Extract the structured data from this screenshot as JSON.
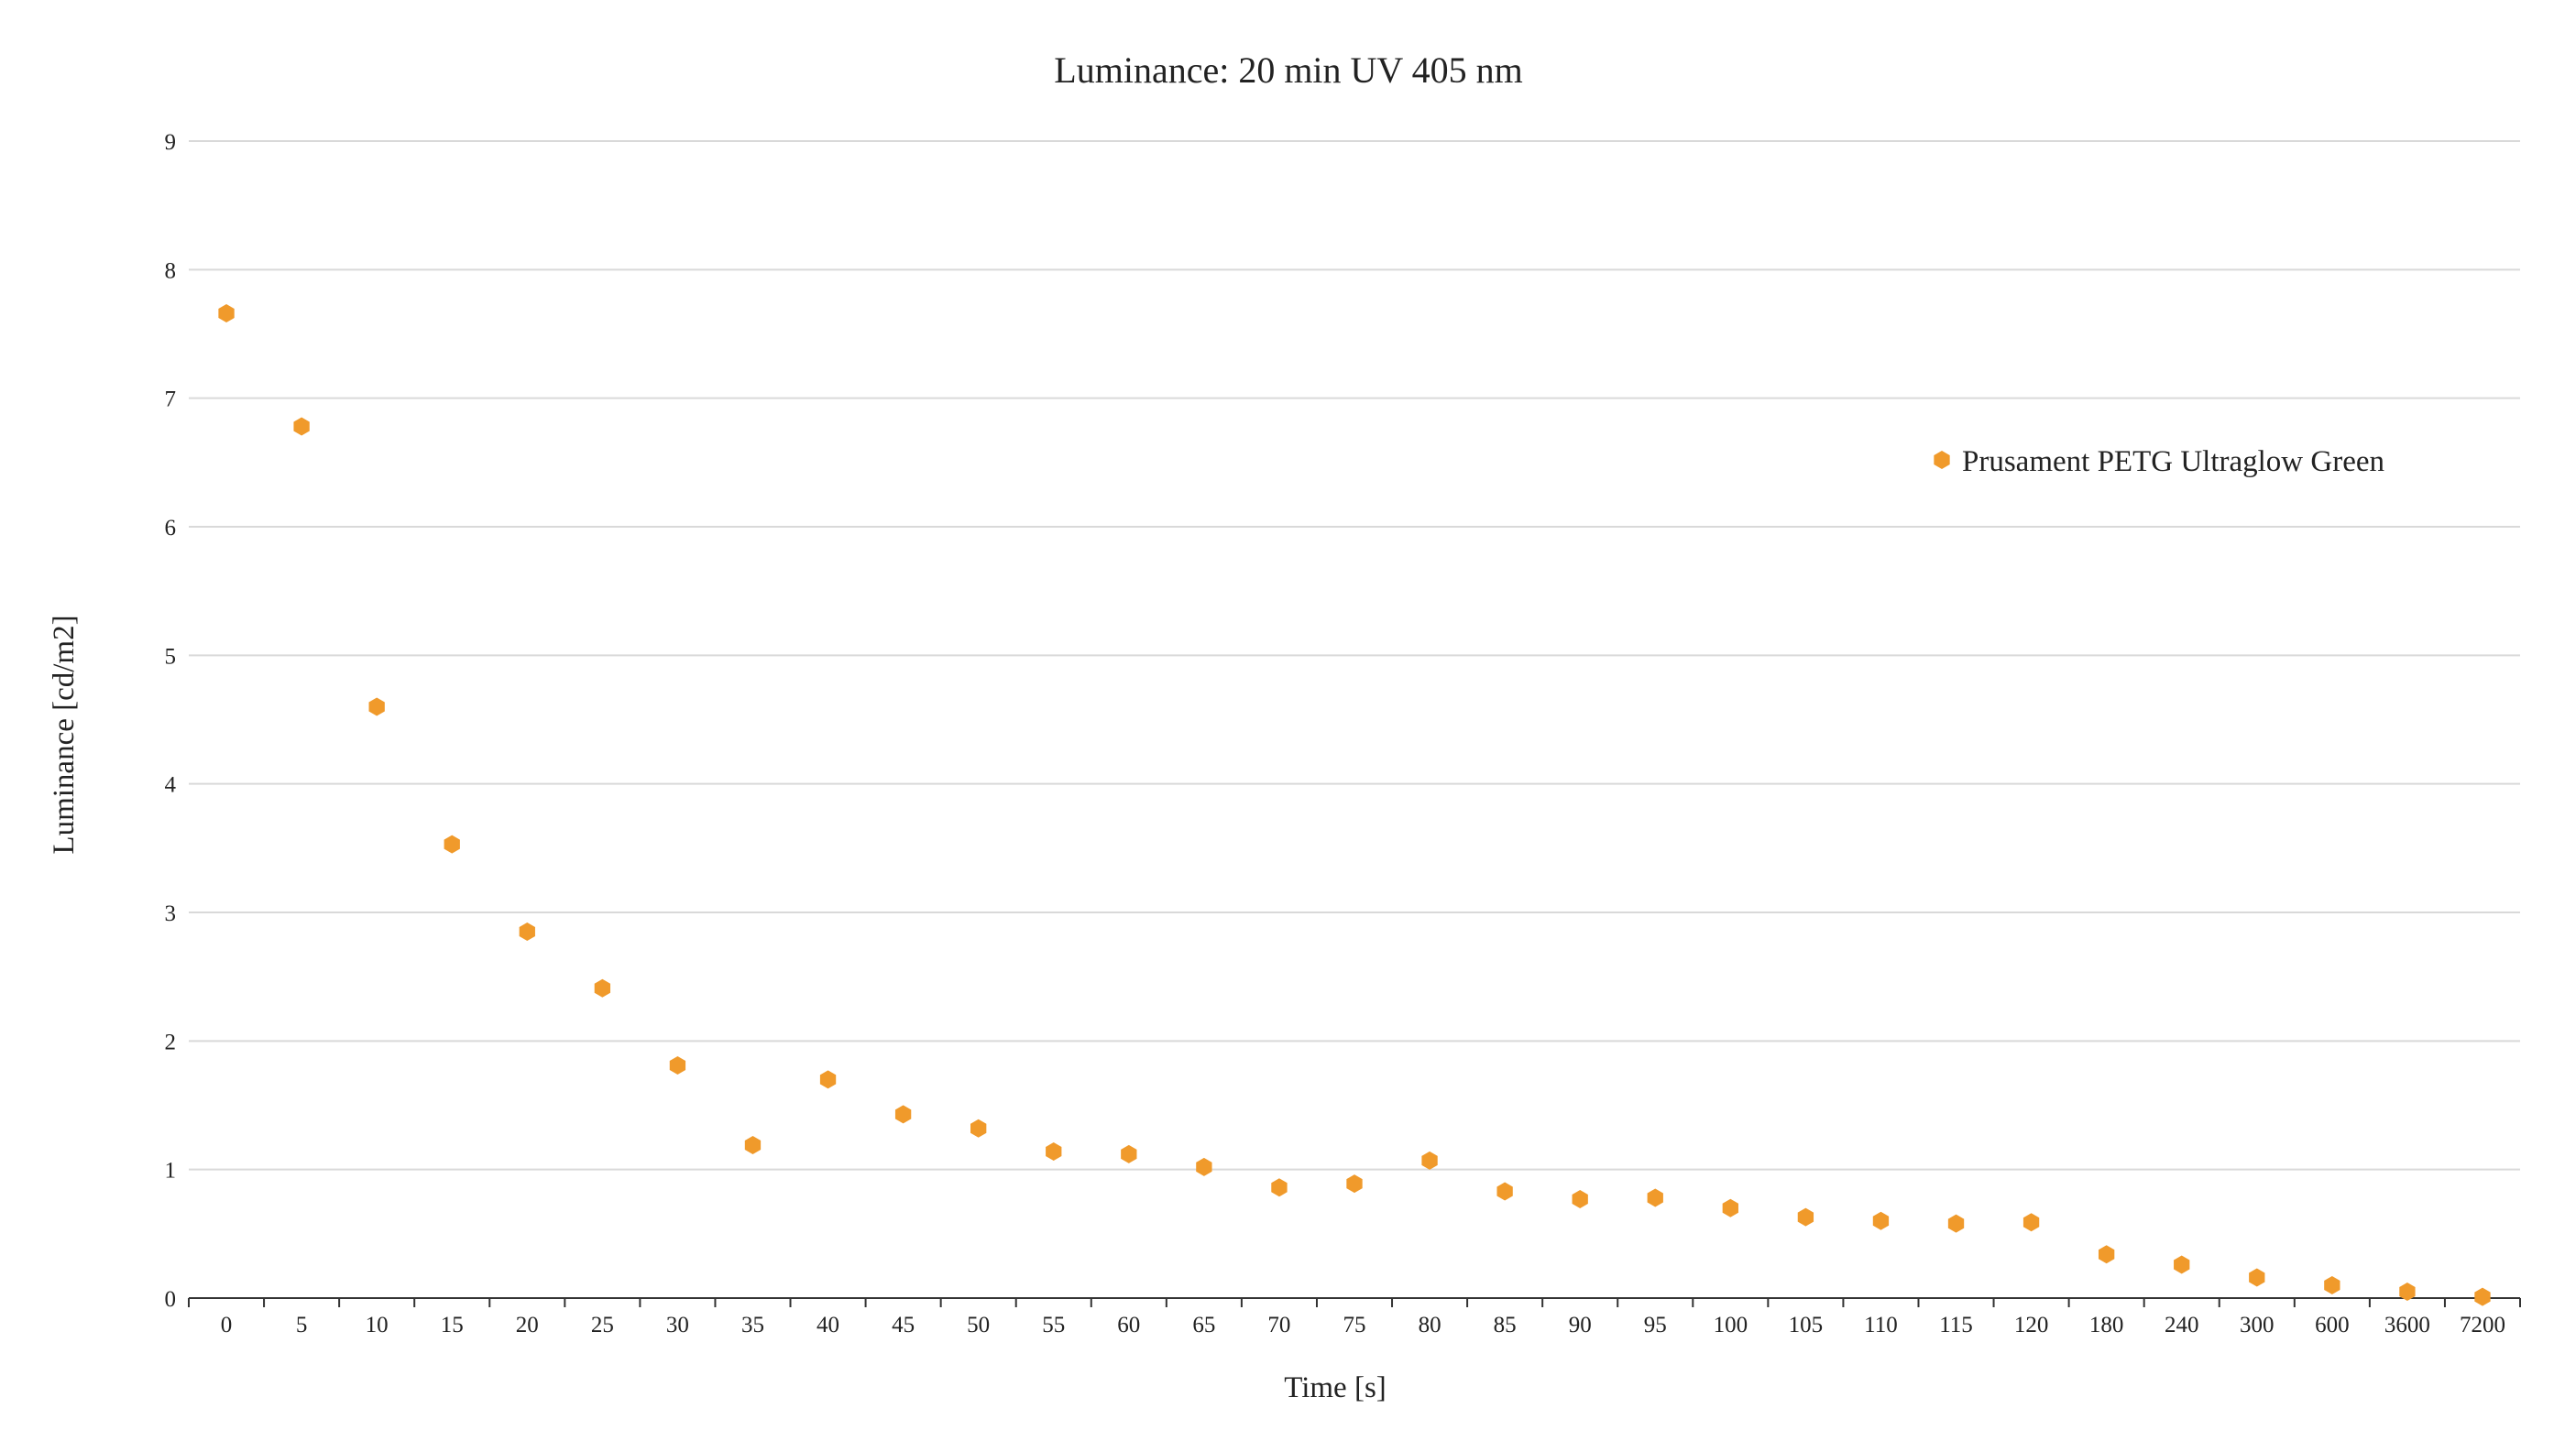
{
  "chart_data": {
    "type": "scatter",
    "title": "Luminance: 20 min UV 405 nm",
    "xlabel": "Time [s]",
    "ylabel": "Luminance [cd/m2]",
    "categories": [
      "0",
      "5",
      "10",
      "15",
      "20",
      "25",
      "30",
      "35",
      "40",
      "45",
      "50",
      "55",
      "60",
      "65",
      "70",
      "75",
      "80",
      "85",
      "90",
      "95",
      "100",
      "105",
      "110",
      "115",
      "120",
      "180",
      "240",
      "300",
      "600",
      "3600",
      "7200"
    ],
    "series": [
      {
        "name": "Prusament PETG Ultraglow Green",
        "values": [
          7.66,
          6.78,
          4.6,
          3.53,
          2.85,
          2.41,
          1.81,
          1.19,
          1.7,
          1.43,
          1.32,
          1.14,
          1.12,
          1.02,
          0.86,
          0.89,
          1.07,
          0.83,
          0.77,
          0.78,
          0.7,
          0.63,
          0.6,
          0.58,
          0.59,
          0.34,
          0.26,
          0.16,
          0.1,
          0.05,
          0.01
        ]
      }
    ],
    "ylim": [
      0,
      9
    ],
    "yticks": [
      "0",
      "1",
      "2",
      "3",
      "4",
      "5",
      "6",
      "7",
      "8",
      "9"
    ],
    "grid": true,
    "legend_position": "right",
    "colors": {
      "marker": "#F09A2B",
      "grid": "#D9D9D9",
      "axis": "#333333"
    }
  }
}
